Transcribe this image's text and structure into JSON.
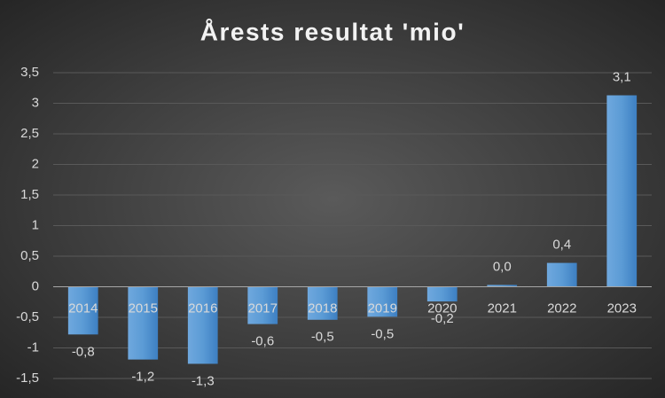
{
  "chart_data": {
    "type": "bar",
    "title": "Årests resultat 'mio'",
    "categories": [
      "2014",
      "2015",
      "2016",
      "2017",
      "2018",
      "2019",
      "2020",
      "2021",
      "2022",
      "2023"
    ],
    "values": [
      -0.78,
      -1.19,
      -1.26,
      -0.61,
      -0.54,
      -0.49,
      -0.24,
      0.03,
      0.39,
      3.13
    ],
    "value_labels": [
      "-0,8",
      "-1,2",
      "-1,3",
      "-0,6",
      "-0,5",
      "-0,5",
      "-0,2",
      "0,0",
      "0,4",
      "3,1"
    ],
    "color": "#5b9bd5",
    "ylim": [
      -1.5,
      3.5
    ],
    "yticks": [
      {
        "value": -1.5,
        "label": "-1,5"
      },
      -1,
      {
        "value": -0.5,
        "label": "-0,5"
      },
      0,
      {
        "value": 0.5,
        "label": "0,5"
      },
      1,
      {
        "value": 1.5,
        "label": "1,5"
      },
      2,
      {
        "value": 2.5,
        "label": "2,5"
      },
      3,
      {
        "value": 3.5,
        "label": "3,5"
      }
    ],
    "grid": true
  }
}
